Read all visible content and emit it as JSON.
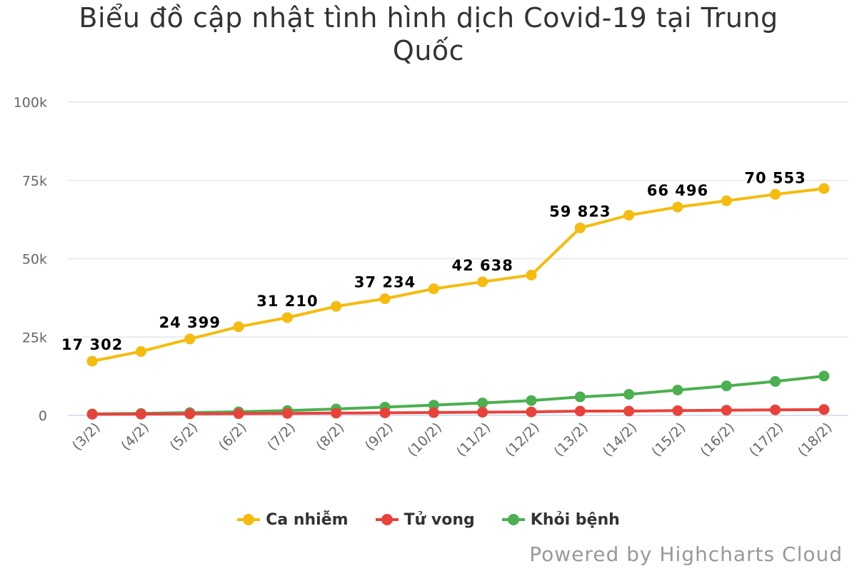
{
  "chart_data": {
    "type": "line",
    "title": "Biểu đồ cập nhật tình hình dịch Covid-19 tại Trung Quốc",
    "categories": [
      "(3/2)",
      "(4/2)",
      "(5/2)",
      "(6/2)",
      "(7/2)",
      "(8/2)",
      "(9/2)",
      "(10/2)",
      "(11/2)",
      "(12/2)",
      "(13/2)",
      "(14/2)",
      "(15/2)",
      "(16/2)",
      "(17/2)",
      "(18/2)"
    ],
    "ylim": [
      0,
      100000
    ],
    "yticks": [
      {
        "value": 0,
        "label": "0"
      },
      {
        "value": 25000,
        "label": "25k"
      },
      {
        "value": 50000,
        "label": "50k"
      },
      {
        "value": 75000,
        "label": "75k"
      },
      {
        "value": 100000,
        "label": "100k"
      }
    ],
    "grid": true,
    "legend_position": "bottom-center",
    "series": [
      {
        "name": "Ca nhiễm",
        "color": "#f5bb0e",
        "values": [
          17302,
          20400,
          24399,
          28300,
          31210,
          34800,
          37234,
          40400,
          42638,
          44800,
          59823,
          63900,
          66496,
          68500,
          70553,
          72400
        ],
        "data_labels": [
          {
            "index": 0,
            "text": "17 302"
          },
          {
            "index": 2,
            "text": "24 399"
          },
          {
            "index": 4,
            "text": "31 210"
          },
          {
            "index": 6,
            "text": "37 234"
          },
          {
            "index": 8,
            "text": "42 638"
          },
          {
            "index": 10,
            "text": "59 823"
          },
          {
            "index": 12,
            "text": "66 496"
          },
          {
            "index": 14,
            "text": "70 553"
          }
        ]
      },
      {
        "name": "Tử vong",
        "color": "#e8433b",
        "values": [
          361,
          425,
          490,
          563,
          636,
          722,
          811,
          908,
          1016,
          1113,
          1367,
          1380,
          1523,
          1665,
          1770,
          1868
        ]
      },
      {
        "name": "Khỏi bệnh",
        "color": "#4caf50",
        "values": [
          475,
          632,
          892,
          1153,
          1540,
          2050,
          2649,
          3281,
          3996,
          4740,
          5911,
          6723,
          8096,
          9419,
          10844,
          12552
        ]
      }
    ]
  },
  "credits": "Powered by Highcharts Cloud"
}
